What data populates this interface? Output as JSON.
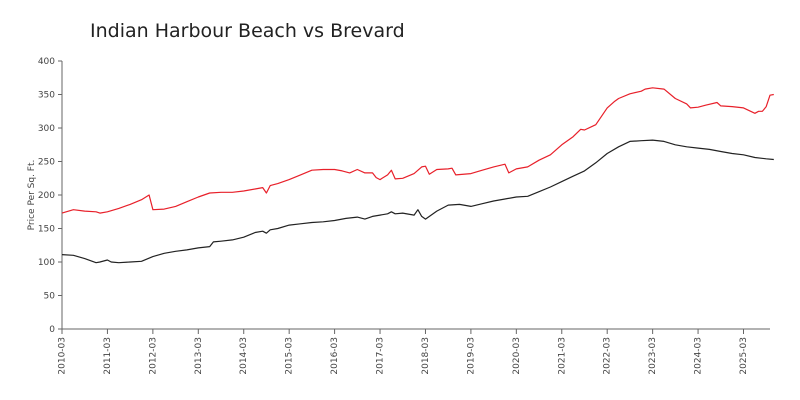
{
  "chart_data": {
    "type": "line",
    "title": "Indian Harbour Beach vs Brevard",
    "xlabel": "",
    "ylabel": "Price Per Sq. Ft.",
    "ylim": [
      0,
      400
    ],
    "y_ticks": [
      0,
      50,
      100,
      150,
      200,
      250,
      300,
      350,
      400
    ],
    "x_range": [
      "2010-03",
      "2025-10"
    ],
    "x_ticks": [
      "2010-03",
      "2011-03",
      "2012-03",
      "2013-03",
      "2014-03",
      "2015-03",
      "2016-03",
      "2017-03",
      "2018-03",
      "2019-03",
      "2020-03",
      "2021-03",
      "2022-03",
      "2023-03",
      "2024-03",
      "2025-03"
    ],
    "grid": false,
    "legend": "none",
    "series": [
      {
        "color": "#e8202a",
        "points": [
          [
            "2010-03",
            173
          ],
          [
            "2010-06",
            178
          ],
          [
            "2010-09",
            176
          ],
          [
            "2010-12",
            175
          ],
          [
            "2011-01",
            173
          ],
          [
            "2011-03",
            175
          ],
          [
            "2011-06",
            180
          ],
          [
            "2011-09",
            186
          ],
          [
            "2011-12",
            193
          ],
          [
            "2012-02",
            200
          ],
          [
            "2012-03",
            178
          ],
          [
            "2012-06",
            179
          ],
          [
            "2012-09",
            183
          ],
          [
            "2012-12",
            190
          ],
          [
            "2013-03",
            197
          ],
          [
            "2013-06",
            203
          ],
          [
            "2013-09",
            204
          ],
          [
            "2013-12",
            204
          ],
          [
            "2014-03",
            206
          ],
          [
            "2014-06",
            209
          ],
          [
            "2014-08",
            211
          ],
          [
            "2014-09",
            203
          ],
          [
            "2014-10",
            214
          ],
          [
            "2014-12",
            217
          ],
          [
            "2015-03",
            223
          ],
          [
            "2015-06",
            230
          ],
          [
            "2015-09",
            237
          ],
          [
            "2015-12",
            238
          ],
          [
            "2016-03",
            238
          ],
          [
            "2016-05",
            236
          ],
          [
            "2016-07",
            233
          ],
          [
            "2016-09",
            238
          ],
          [
            "2016-11",
            233
          ],
          [
            "2017-01",
            233
          ],
          [
            "2017-02",
            226
          ],
          [
            "2017-03",
            223
          ],
          [
            "2017-05",
            230
          ],
          [
            "2017-06",
            237
          ],
          [
            "2017-07",
            224
          ],
          [
            "2017-09",
            225
          ],
          [
            "2017-12",
            232
          ],
          [
            "2018-02",
            242
          ],
          [
            "2018-03",
            243
          ],
          [
            "2018-04",
            231
          ],
          [
            "2018-06",
            238
          ],
          [
            "2018-09",
            239
          ],
          [
            "2018-10",
            240
          ],
          [
            "2018-11",
            230
          ],
          [
            "2019-03",
            232
          ],
          [
            "2019-06",
            237
          ],
          [
            "2019-09",
            242
          ],
          [
            "2019-12",
            246
          ],
          [
            "2020-01",
            233
          ],
          [
            "2020-03",
            239
          ],
          [
            "2020-06",
            242
          ],
          [
            "2020-09",
            252
          ],
          [
            "2020-12",
            260
          ],
          [
            "2021-03",
            275
          ],
          [
            "2021-06",
            287
          ],
          [
            "2021-08",
            298
          ],
          [
            "2021-09",
            297
          ],
          [
            "2021-12",
            305
          ],
          [
            "2022-03",
            330
          ],
          [
            "2022-05",
            340
          ],
          [
            "2022-06",
            344
          ],
          [
            "2022-09",
            351
          ],
          [
            "2022-12",
            355
          ],
          [
            "2023-01",
            358
          ],
          [
            "2023-03",
            360
          ],
          [
            "2023-06",
            358
          ],
          [
            "2023-09",
            344
          ],
          [
            "2023-12",
            336
          ],
          [
            "2024-01",
            330
          ],
          [
            "2024-03",
            331
          ],
          [
            "2024-05",
            334
          ],
          [
            "2024-08",
            338
          ],
          [
            "2024-09",
            333
          ],
          [
            "2024-12",
            332
          ],
          [
            "2025-03",
            330
          ],
          [
            "2025-06",
            322
          ],
          [
            "2025-07",
            325
          ],
          [
            "2025-08",
            325
          ],
          [
            "2025-09",
            332
          ],
          [
            "2025-10",
            349
          ],
          [
            "2025-11",
            350
          ]
        ]
      },
      {
        "color": "#222222",
        "points": [
          [
            "2010-03",
            111
          ],
          [
            "2010-06",
            110
          ],
          [
            "2010-09",
            105
          ],
          [
            "2010-12",
            99
          ],
          [
            "2011-01",
            100
          ],
          [
            "2011-03",
            103
          ],
          [
            "2011-04",
            100
          ],
          [
            "2011-06",
            99
          ],
          [
            "2011-09",
            100
          ],
          [
            "2011-12",
            101
          ],
          [
            "2012-03",
            108
          ],
          [
            "2012-06",
            113
          ],
          [
            "2012-09",
            116
          ],
          [
            "2012-12",
            118
          ],
          [
            "2013-03",
            121
          ],
          [
            "2013-06",
            123
          ],
          [
            "2013-07",
            130
          ],
          [
            "2013-09",
            131
          ],
          [
            "2013-12",
            133
          ],
          [
            "2014-03",
            137
          ],
          [
            "2014-06",
            144
          ],
          [
            "2014-08",
            146
          ],
          [
            "2014-09",
            143
          ],
          [
            "2014-10",
            148
          ],
          [
            "2014-12",
            150
          ],
          [
            "2015-03",
            155
          ],
          [
            "2015-06",
            157
          ],
          [
            "2015-09",
            159
          ],
          [
            "2015-12",
            160
          ],
          [
            "2016-03",
            162
          ],
          [
            "2016-06",
            165
          ],
          [
            "2016-09",
            167
          ],
          [
            "2016-11",
            164
          ],
          [
            "2017-01",
            168
          ],
          [
            "2017-03",
            170
          ],
          [
            "2017-05",
            172
          ],
          [
            "2017-06",
            175
          ],
          [
            "2017-07",
            172
          ],
          [
            "2017-09",
            173
          ],
          [
            "2017-12",
            170
          ],
          [
            "2018-01",
            178
          ],
          [
            "2018-02",
            168
          ],
          [
            "2018-03",
            164
          ],
          [
            "2018-06",
            176
          ],
          [
            "2018-09",
            185
          ],
          [
            "2018-12",
            186
          ],
          [
            "2019-03",
            183
          ],
          [
            "2019-06",
            187
          ],
          [
            "2019-09",
            191
          ],
          [
            "2019-12",
            194
          ],
          [
            "2020-03",
            197
          ],
          [
            "2020-06",
            198
          ],
          [
            "2020-09",
            205
          ],
          [
            "2020-12",
            212
          ],
          [
            "2021-03",
            220
          ],
          [
            "2021-06",
            228
          ],
          [
            "2021-09",
            236
          ],
          [
            "2021-12",
            248
          ],
          [
            "2022-03",
            262
          ],
          [
            "2022-06",
            272
          ],
          [
            "2022-09",
            280
          ],
          [
            "2022-12",
            281
          ],
          [
            "2023-03",
            282
          ],
          [
            "2023-06",
            280
          ],
          [
            "2023-09",
            275
          ],
          [
            "2023-12",
            272
          ],
          [
            "2024-03",
            270
          ],
          [
            "2024-06",
            268
          ],
          [
            "2024-09",
            265
          ],
          [
            "2024-12",
            262
          ],
          [
            "2025-03",
            260
          ],
          [
            "2025-06",
            256
          ],
          [
            "2025-09",
            254
          ],
          [
            "2025-11",
            253
          ]
        ]
      }
    ]
  }
}
